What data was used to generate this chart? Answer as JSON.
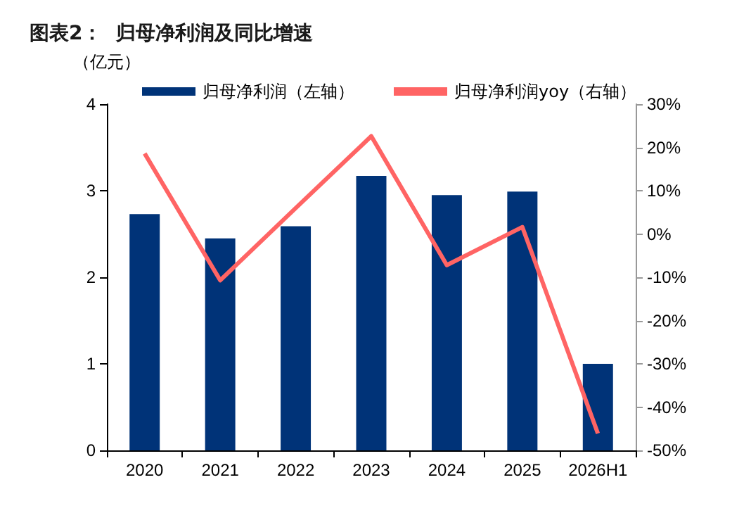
{
  "chart_data": {
    "type": "bar",
    "title": "图表2：  归母净利润及同比增速",
    "ylabel": "（亿元）",
    "categories": [
      "2020",
      "2021",
      "2022",
      "2023",
      "2024",
      "2025",
      "2026H1"
    ],
    "series": [
      {
        "name": "归母净利润（左轴）",
        "color": "#003378",
        "values": [
          2.73,
          2.45,
          2.59,
          3.17,
          2.95,
          2.99,
          1.0
        ]
      },
      {
        "name": "归母净利润yoy（右轴）",
        "type": "line",
        "axis": "y2",
        "color": "#ff6464",
        "marker": "none",
        "values": [
          18.6,
          -10.7,
          6,
          22.6,
          -7.2,
          1.6,
          -46.1
        ]
      }
    ],
    "ylim": [
      0,
      4
    ],
    "yticks": [
      0,
      1,
      2,
      3,
      4
    ],
    "y2lim": [
      -50,
      30
    ],
    "y2ticks": [
      {
        "value": -50,
        "label": "-50%"
      },
      {
        "value": -40,
        "label": "-40%"
      },
      {
        "value": -30,
        "label": "-30%"
      },
      {
        "value": -20,
        "label": "-20%"
      },
      {
        "value": -10,
        "label": "-10%"
      },
      {
        "value": 0,
        "label": "0%"
      },
      {
        "value": 10,
        "label": "10%"
      },
      {
        "value": 20,
        "label": "20%"
      },
      {
        "value": 30,
        "label": "30%"
      }
    ],
    "legend": "top",
    "grid": false
  }
}
